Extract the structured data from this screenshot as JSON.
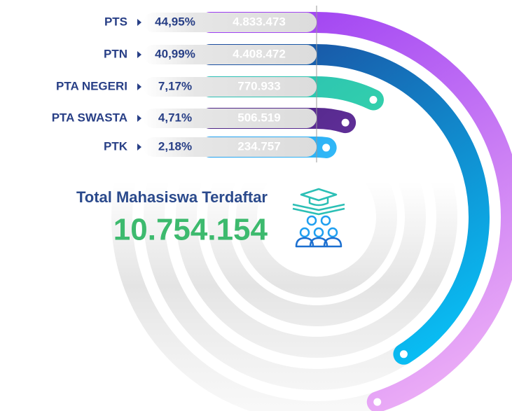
{
  "chart_data": {
    "type": "radial_bar",
    "categories": [
      "PTS",
      "PTN",
      "PTA NEGERI",
      "PTA SWASTA",
      "PTK"
    ],
    "values": [
      44.95,
      40.99,
      7.17,
      4.71,
      2.18
    ],
    "value_labels": [
      "44,95%",
      "40,99%",
      "7,17%",
      "4,71%",
      "2,18%"
    ],
    "counts": [
      4833473,
      4408472,
      770933,
      506519,
      234757
    ],
    "count_labels": [
      "4.833.473",
      "4.408.472",
      "770.933",
      "506.519",
      "234.757"
    ],
    "colors": [
      [
        "#9b3cf2",
        "#eeb0f6"
      ],
      [
        "#1b4c9e",
        "#08c2f7"
      ],
      [
        "#2bbfb5",
        "#3eea9c"
      ],
      [
        "#4d2585",
        "#7a3cb2"
      ],
      [
        "#1f9ff0",
        "#46d4ff"
      ]
    ],
    "total": {
      "title": "Total Mahasiswa Terdaftar",
      "value": 10754154,
      "value_label": "10.754.154"
    }
  }
}
